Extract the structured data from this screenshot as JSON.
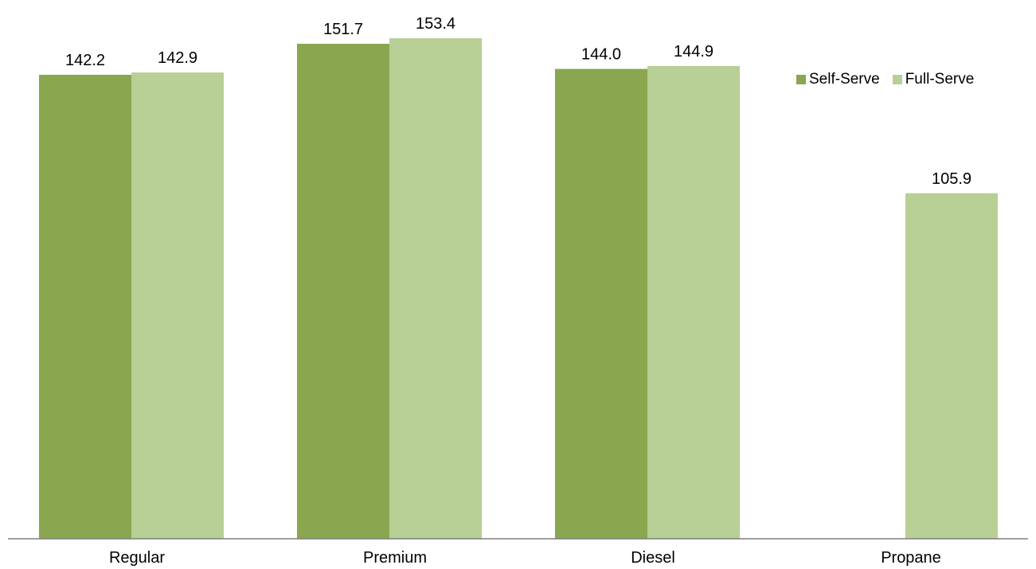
{
  "chart_data": {
    "type": "bar",
    "title": "",
    "xlabel": "",
    "ylabel": "",
    "categories": [
      "Regular",
      "Premium",
      "Diesel",
      "Propane"
    ],
    "series": [
      {
        "name": "Self-Serve",
        "color": "#8aa64e",
        "values": [
          142.2,
          151.7,
          144.0,
          null
        ],
        "labels": [
          "142.2",
          "151.7",
          "144.0",
          ""
        ]
      },
      {
        "name": "Full-Serve",
        "color": "#b8cf95",
        "values": [
          142.9,
          153.4,
          144.9,
          105.9
        ],
        "labels": [
          "142.9",
          "153.4",
          "144.9",
          "105.9"
        ]
      }
    ],
    "ylim": [
      0,
      160
    ],
    "grid": false,
    "legend_position": "top-right",
    "axis_color": "#7f7f7f"
  }
}
